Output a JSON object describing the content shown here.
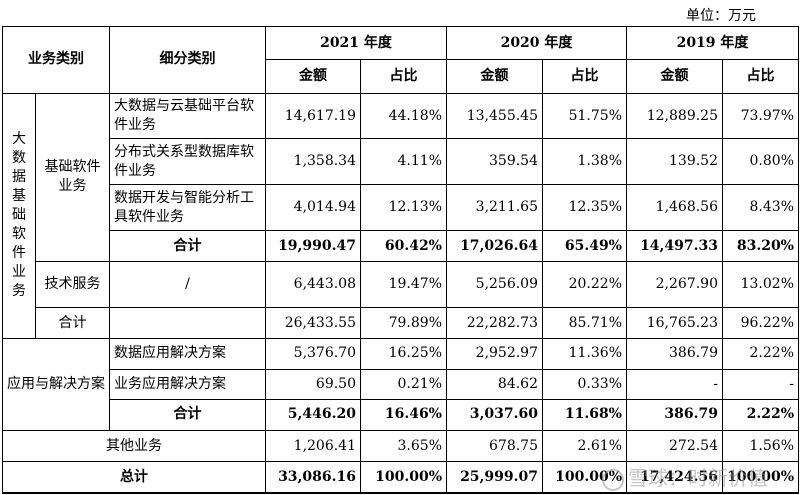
{
  "unit_label": "单位：万元",
  "header": {
    "business_type": "业务类别",
    "sub_type": "细分类别",
    "years": [
      "2021 年度",
      "2020 年度",
      "2019 年度"
    ],
    "amount": "金额",
    "ratio": "占比"
  },
  "group_bigdata": "大数据基础软件业务",
  "group_bigdata_chars": [
    "大",
    "数",
    "据",
    "基",
    "础",
    "软",
    "件",
    "业",
    "务"
  ],
  "base_software": "基础软件业务",
  "rows": {
    "r1": {
      "name": "大数据与云基础平台软件业务",
      "v": [
        "14,617.19",
        "44.18%",
        "13,455.45",
        "51.75%",
        "12,889.25",
        "73.97%"
      ]
    },
    "r2": {
      "name": "分布式关系型数据库软件业务",
      "v": [
        "1,358.34",
        "4.11%",
        "359.54",
        "1.38%",
        "139.52",
        "0.80%"
      ]
    },
    "r3": {
      "name": "数据开发与智能分析工具软件业务",
      "v": [
        "4,014.94",
        "12.13%",
        "3,211.65",
        "12.35%",
        "1,468.56",
        "8.43%"
      ]
    },
    "r4": {
      "name": "合计",
      "v": [
        "19,990.47",
        "60.42%",
        "17,026.64",
        "65.49%",
        "14,497.33",
        "83.20%"
      ]
    },
    "r5": {
      "name": "技术服务",
      "sub": "/",
      "v": [
        "6,443.08",
        "19.47%",
        "5,256.09",
        "20.22%",
        "2,267.90",
        "13.02%"
      ]
    },
    "r6": {
      "name": "合计",
      "v": [
        "26,433.55",
        "79.89%",
        "22,282.73",
        "85.71%",
        "16,765.23",
        "96.22%"
      ]
    },
    "app_group": "应用与解决方案",
    "r7": {
      "name": "数据应用解决方案",
      "v": [
        "5,376.70",
        "16.25%",
        "2,952.97",
        "11.36%",
        "386.79",
        "2.22%"
      ]
    },
    "r8": {
      "name": "业务应用解决方案",
      "v": [
        "69.50",
        "0.21%",
        "84.62",
        "0.33%",
        "-",
        "-"
      ]
    },
    "r9": {
      "name": "合计",
      "v": [
        "5,446.20",
        "16.46%",
        "3,037.60",
        "11.68%",
        "386.79",
        "2.22%"
      ]
    },
    "r10": {
      "name": "其他业务",
      "v": [
        "1,206.41",
        "3.65%",
        "678.75",
        "2.61%",
        "272.54",
        "1.56%"
      ]
    },
    "r11": {
      "name": "总计",
      "v": [
        "33,086.16",
        "100.00%",
        "25,999.07",
        "100.00%",
        "17,424.56",
        "100.00%"
      ]
    }
  },
  "watermark": "雪球：时新价值"
}
